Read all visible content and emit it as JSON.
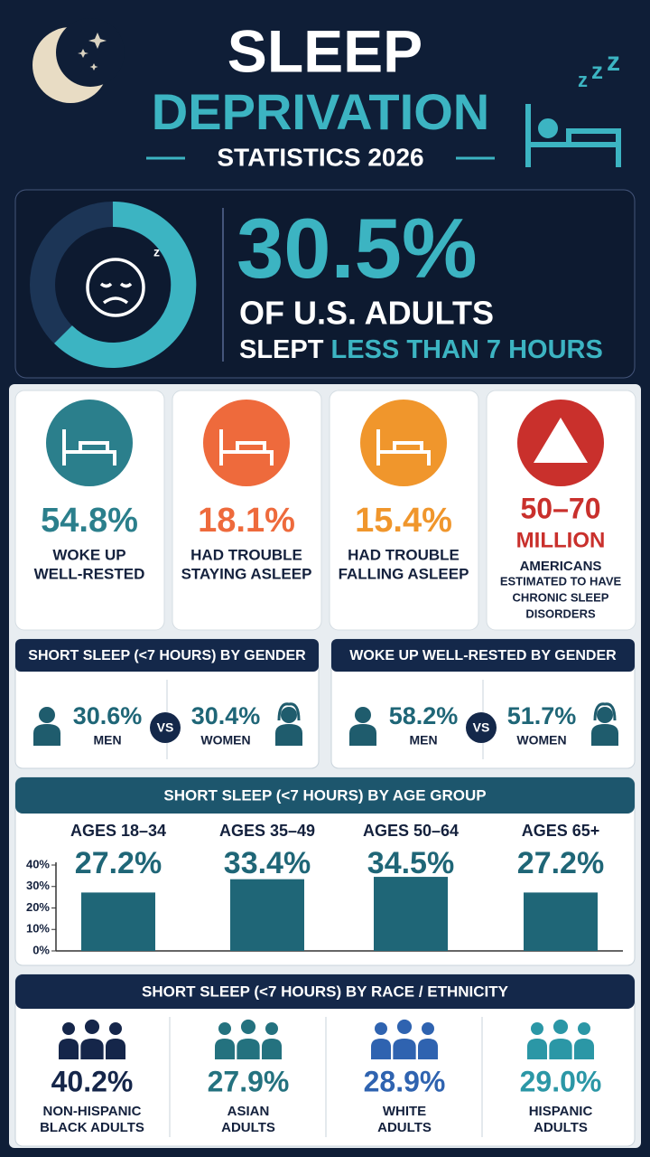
{
  "header": {
    "title_line1": "SLEEP",
    "title_line2": "DEPRIVATION",
    "subtitle": "STATISTICS 2026"
  },
  "hero": {
    "value": "30.5%",
    "line1": "OF U.S. ADULTS",
    "line2_part1": "SLEPT",
    "line2_part2": "LESS THAN 7 HOURS"
  },
  "stats": [
    {
      "value": "54.8%",
      "label1": "WOKE UP",
      "label2": "WELL-RESTED",
      "color": "#2b7f8c"
    },
    {
      "value": "18.1%",
      "label1": "HAD TROUBLE",
      "label2": "STAYING ASLEEP",
      "color": "#ee6a3c"
    },
    {
      "value": "15.4%",
      "label1": "HAD TROUBLE",
      "label2": "FALLING ASLEEP",
      "color": "#f0962c"
    },
    {
      "value": "50–70",
      "value2": "MILLION",
      "label1": "AMERICANS",
      "label2": "ESTIMATED TO HAVE",
      "label3": "CHRONIC SLEEP",
      "label4": "DISORDERS",
      "color": "#c9302c"
    }
  ],
  "gender_short": {
    "title": "SHORT SLEEP (<7 HOURS) BY GENDER",
    "men_value": "30.6%",
    "men_label": "MEN",
    "vs": "VS",
    "women_value": "30.4%",
    "women_label": "WOMEN"
  },
  "gender_rested": {
    "title": "WOKE UP WELL-RESTED BY GENDER",
    "men_value": "58.2%",
    "men_label": "MEN",
    "vs": "VS",
    "women_value": "51.7%",
    "women_label": "WOMEN"
  },
  "age_chart": {
    "type": "bar",
    "title": "SHORT SLEEP (<7 HOURS) BY AGE GROUP",
    "categories": [
      "AGES 18–34",
      "AGES 35–49",
      "AGES 50–64",
      "AGES 65+"
    ],
    "values": [
      27.2,
      33.4,
      34.5,
      27.2
    ],
    "value_labels": [
      "27.2%",
      "33.4%",
      "34.5%",
      "27.2%"
    ],
    "color": "#1f6677",
    "ylim": [
      0,
      40
    ],
    "yticks": [
      {
        "value": 0,
        "label": "0%"
      },
      {
        "value": 10,
        "label": "10%"
      },
      {
        "value": 20,
        "label": "20%"
      },
      {
        "value": 30,
        "label": "30%"
      },
      {
        "value": 40,
        "label": "40%"
      }
    ]
  },
  "race": {
    "title": "SHORT SLEEP (<7 HOURS) BY RACE / ETHNICITY",
    "groups": [
      {
        "value": "40.2%",
        "label1": "NON-HISPANIC",
        "label2": "BLACK ADULTS",
        "color": "#15264a"
      },
      {
        "value": "27.9%",
        "label1": "ASIAN",
        "label2": "ADULTS",
        "color": "#24727f"
      },
      {
        "value": "28.9%",
        "label1": "WHITE",
        "label2": "ADULTS",
        "color": "#2f63b0"
      },
      {
        "value": "29.0%",
        "label1": "HISPANIC",
        "label2": "ADULTS",
        "color": "#2b97a6"
      }
    ]
  }
}
